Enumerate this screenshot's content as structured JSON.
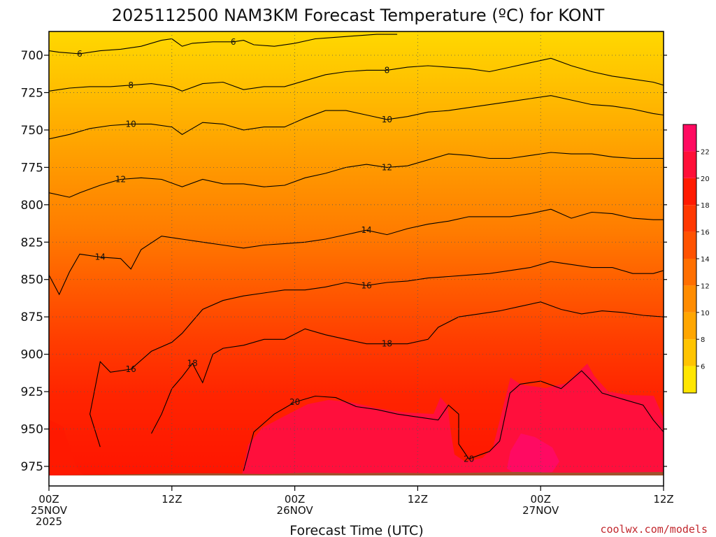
{
  "chart_data": {
    "type": "heatmap",
    "title": "2025112500 NAM3KM Forecast Temperature (ºC) for KONT",
    "xlabel": "Forecast Time (UTC)",
    "ylabel": "",
    "y_ticks": [
      "700",
      "725",
      "750",
      "775",
      "800",
      "825",
      "850",
      "875",
      "900",
      "925",
      "950",
      "975"
    ],
    "y_range": [
      685,
      985
    ],
    "y_ground": 978,
    "x_ticks": [
      {
        "hour": 0,
        "line1": "00Z",
        "line2": "25NOV",
        "line3": "2025"
      },
      {
        "hour": 12,
        "line1": "12Z",
        "line2": "",
        "line3": ""
      },
      {
        "hour": 24,
        "line1": "00Z",
        "line2": "26NOV",
        "line3": ""
      },
      {
        "hour": 36,
        "line1": "12Z",
        "line2": "",
        "line3": ""
      },
      {
        "hour": 48,
        "line1": "00Z",
        "line2": "27NOV",
        "line3": ""
      },
      {
        "hour": 60,
        "line1": "12Z",
        "line2": "",
        "line3": ""
      }
    ],
    "x_range": [
      0,
      60
    ],
    "grid": true,
    "colorbar": {
      "labels": [
        "6",
        "8",
        "10",
        "12",
        "14",
        "16",
        "18",
        "20",
        "22"
      ],
      "colors": [
        "#ffe600",
        "#ffc400",
        "#ffa600",
        "#ff8c00",
        "#ff6f00",
        "#ff5200",
        "#ff3800",
        "#ff1a00",
        "#ff0f38",
        "#ff0a60"
      ]
    },
    "isotherms": [
      {
        "value": 6,
        "label": "6",
        "points": [
          [
            0,
            697
          ],
          [
            1,
            698
          ],
          [
            3,
            699
          ],
          [
            5,
            697
          ],
          [
            7,
            696
          ],
          [
            9,
            694
          ],
          [
            11,
            690
          ],
          [
            12,
            689
          ],
          [
            13,
            694
          ],
          [
            14,
            692
          ],
          [
            16,
            691
          ],
          [
            18,
            691
          ],
          [
            19,
            690
          ],
          [
            20,
            693
          ],
          [
            22,
            694
          ],
          [
            24,
            692
          ],
          [
            26,
            689
          ],
          [
            28,
            688
          ],
          [
            30,
            687
          ],
          [
            32,
            686
          ],
          [
            34,
            686
          ]
        ]
      },
      {
        "value": 8,
        "label": "8",
        "points": [
          [
            0,
            724
          ],
          [
            2,
            722
          ],
          [
            4,
            721
          ],
          [
            6,
            721
          ],
          [
            8,
            720
          ],
          [
            10,
            719
          ],
          [
            12,
            721
          ],
          [
            13,
            724
          ],
          [
            15,
            719
          ],
          [
            17,
            718
          ],
          [
            19,
            723
          ],
          [
            21,
            721
          ],
          [
            23,
            721
          ],
          [
            25,
            717
          ],
          [
            27,
            713
          ],
          [
            29,
            711
          ],
          [
            31,
            710
          ],
          [
            33,
            710
          ],
          [
            35,
            708
          ],
          [
            37,
            707
          ],
          [
            39,
            708
          ],
          [
            41,
            709
          ],
          [
            43,
            711
          ],
          [
            45,
            708
          ],
          [
            47,
            705
          ],
          [
            49,
            702
          ],
          [
            51,
            707
          ],
          [
            53,
            711
          ],
          [
            55,
            714
          ],
          [
            57,
            716
          ],
          [
            59,
            718
          ],
          [
            60,
            720
          ]
        ]
      },
      {
        "value": 10,
        "label": "10",
        "points": [
          [
            0,
            756
          ],
          [
            2,
            753
          ],
          [
            4,
            749
          ],
          [
            6,
            747
          ],
          [
            8,
            746
          ],
          [
            10,
            746
          ],
          [
            12,
            748
          ],
          [
            13,
            753
          ],
          [
            15,
            745
          ],
          [
            17,
            746
          ],
          [
            19,
            750
          ],
          [
            21,
            748
          ],
          [
            23,
            748
          ],
          [
            25,
            742
          ],
          [
            27,
            737
          ],
          [
            29,
            737
          ],
          [
            31,
            740
          ],
          [
            33,
            743
          ],
          [
            35,
            741
          ],
          [
            37,
            738
          ],
          [
            39,
            737
          ],
          [
            41,
            735
          ],
          [
            43,
            733
          ],
          [
            45,
            731
          ],
          [
            47,
            729
          ],
          [
            49,
            727
          ],
          [
            51,
            730
          ],
          [
            53,
            733
          ],
          [
            55,
            734
          ],
          [
            57,
            736
          ],
          [
            59,
            739
          ],
          [
            60,
            740
          ]
        ]
      },
      {
        "value": 12,
        "label": "12",
        "points": [
          [
            0,
            792
          ],
          [
            2,
            795
          ],
          [
            3,
            792
          ],
          [
            5,
            787
          ],
          [
            7,
            783
          ],
          [
            9,
            782
          ],
          [
            11,
            783
          ],
          [
            13,
            788
          ],
          [
            15,
            783
          ],
          [
            17,
            786
          ],
          [
            19,
            786
          ],
          [
            21,
            788
          ],
          [
            23,
            787
          ],
          [
            25,
            782
          ],
          [
            27,
            779
          ],
          [
            29,
            775
          ],
          [
            31,
            773
          ],
          [
            33,
            775
          ],
          [
            35,
            774
          ],
          [
            37,
            770
          ],
          [
            39,
            766
          ],
          [
            41,
            767
          ],
          [
            43,
            769
          ],
          [
            45,
            769
          ],
          [
            47,
            767
          ],
          [
            49,
            765
          ],
          [
            51,
            766
          ],
          [
            53,
            766
          ],
          [
            55,
            768
          ],
          [
            57,
            769
          ],
          [
            59,
            769
          ],
          [
            60,
            769
          ]
        ]
      },
      {
        "value": 14,
        "label": "14",
        "points": [
          [
            0,
            847
          ],
          [
            1,
            860
          ],
          [
            2,
            845
          ],
          [
            3,
            833
          ],
          [
            5,
            835
          ],
          [
            7,
            836
          ],
          [
            8,
            843
          ],
          [
            9,
            830
          ],
          [
            11,
            821
          ],
          [
            13,
            823
          ],
          [
            15,
            825
          ],
          [
            17,
            827
          ],
          [
            19,
            829
          ],
          [
            21,
            827
          ],
          [
            23,
            826
          ],
          [
            25,
            825
          ],
          [
            27,
            823
          ],
          [
            29,
            820
          ],
          [
            31,
            817
          ],
          [
            33,
            820
          ],
          [
            35,
            816
          ],
          [
            37,
            813
          ],
          [
            39,
            811
          ],
          [
            41,
            808
          ],
          [
            43,
            808
          ],
          [
            45,
            808
          ],
          [
            47,
            806
          ],
          [
            49,
            803
          ],
          [
            51,
            809
          ],
          [
            53,
            805
          ],
          [
            55,
            806
          ],
          [
            57,
            809
          ],
          [
            59,
            810
          ],
          [
            60,
            810
          ]
        ]
      },
      {
        "value": 16,
        "label": "16",
        "points": [
          [
            5,
            962
          ],
          [
            4,
            940
          ],
          [
            5,
            905
          ],
          [
            6,
            912
          ],
          [
            8,
            910
          ],
          [
            10,
            898
          ],
          [
            12,
            892
          ],
          [
            13,
            886
          ],
          [
            14,
            878
          ],
          [
            15,
            870
          ],
          [
            17,
            864
          ],
          [
            19,
            861
          ],
          [
            21,
            859
          ],
          [
            23,
            857
          ],
          [
            25,
            857
          ],
          [
            27,
            855
          ],
          [
            29,
            852
          ],
          [
            31,
            854
          ],
          [
            33,
            852
          ],
          [
            35,
            851
          ],
          [
            37,
            849
          ],
          [
            39,
            848
          ],
          [
            41,
            847
          ],
          [
            43,
            846
          ],
          [
            45,
            844
          ],
          [
            47,
            842
          ],
          [
            49,
            838
          ],
          [
            51,
            840
          ],
          [
            53,
            842
          ],
          [
            55,
            842
          ],
          [
            57,
            846
          ],
          [
            59,
            846
          ],
          [
            60,
            844
          ]
        ]
      },
      {
        "value": 18,
        "label": "18",
        "points": [
          [
            10,
            953
          ],
          [
            11,
            940
          ],
          [
            12,
            923
          ],
          [
            13,
            915
          ],
          [
            14,
            906
          ],
          [
            15,
            919
          ],
          [
            16,
            900
          ],
          [
            17,
            896
          ],
          [
            19,
            894
          ],
          [
            21,
            890
          ],
          [
            23,
            890
          ],
          [
            25,
            883
          ],
          [
            27,
            887
          ],
          [
            29,
            890
          ],
          [
            31,
            893
          ],
          [
            33,
            893
          ],
          [
            35,
            893
          ],
          [
            37,
            890
          ],
          [
            38,
            882
          ],
          [
            40,
            875
          ],
          [
            42,
            873
          ],
          [
            44,
            871
          ],
          [
            46,
            868
          ],
          [
            48,
            865
          ],
          [
            50,
            870
          ],
          [
            52,
            873
          ],
          [
            54,
            871
          ],
          [
            56,
            872
          ],
          [
            58,
            874
          ],
          [
            60,
            875
          ]
        ]
      },
      {
        "value": 20,
        "label": "20",
        "points": [
          [
            19,
            978
          ],
          [
            20,
            952
          ],
          [
            22,
            940
          ],
          [
            24,
            932
          ],
          [
            26,
            928
          ],
          [
            28,
            929
          ],
          [
            30,
            935
          ],
          [
            32,
            937
          ],
          [
            34,
            940
          ],
          [
            36,
            942
          ],
          [
            38,
            944
          ],
          [
            39,
            934
          ],
          [
            40,
            940
          ],
          [
            40,
            960
          ],
          [
            41,
            970
          ],
          [
            43,
            965
          ],
          [
            44,
            958
          ],
          [
            45,
            926
          ],
          [
            46,
            920
          ],
          [
            48,
            918
          ],
          [
            50,
            923
          ],
          [
            52,
            911
          ],
          [
            53,
            918
          ],
          [
            54,
            926
          ],
          [
            56,
            930
          ],
          [
            58,
            934
          ],
          [
            59,
            944
          ],
          [
            60,
            952
          ]
        ]
      }
    ]
  }
}
